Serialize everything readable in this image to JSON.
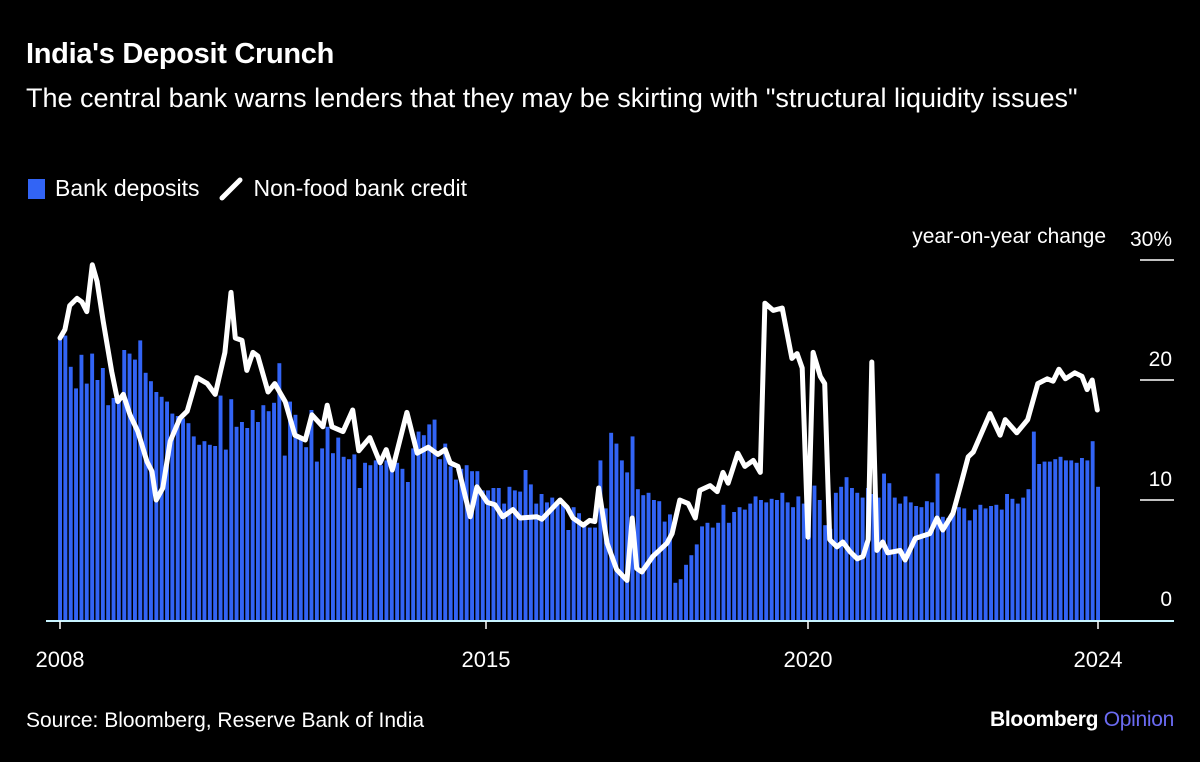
{
  "title": "India's Deposit Crunch",
  "subtitle": "The central bank warns lenders that they may be skirting with \"structural liquidity issues\"",
  "source": "Source: Bloomberg, Reserve Bank of India",
  "logo": {
    "brand": "Bloomberg",
    "section": "Opinion"
  },
  "colors": {
    "background": "#000000",
    "bars": "#3264f5",
    "line": "#ffffff",
    "logo_accent": "#6b6bf2"
  },
  "chart_data": {
    "type": "bar+line",
    "title": "India's Deposit Crunch",
    "ylabel": "year-on-year change",
    "yunit": "%",
    "ylim": [
      0,
      30
    ],
    "yticks": [
      {
        "value": 30,
        "label": "30%"
      },
      {
        "value": 20,
        "label": "20"
      },
      {
        "value": 10,
        "label": "10"
      },
      {
        "value": 0,
        "label": "0"
      }
    ],
    "xlim": [
      2008,
      2024
    ],
    "xticks": [
      "2008",
      "2015",
      "2020",
      "2024"
    ],
    "grid": true,
    "legend_position": "top-left",
    "series": [
      {
        "name": "Bank deposits",
        "kind": "bar",
        "values": [
          23.5,
          23.7,
          21.1,
          19.3,
          22.1,
          19.7,
          22.2,
          20.0,
          21.0,
          17.9,
          18.5,
          18.2,
          22.5,
          22.2,
          21.7,
          23.3,
          20.6,
          19.9,
          19.0,
          18.6,
          18.2,
          17.2,
          17.0,
          16.8,
          16.4,
          15.3,
          14.6,
          14.9,
          14.6,
          14.5,
          18.7,
          14.2,
          18.4,
          16.1,
          16.5,
          16.0,
          17.5,
          16.5,
          17.9,
          17.4,
          18.1,
          21.4,
          13.7,
          18.2,
          17.1,
          15.3,
          14.4,
          17.5,
          13.2,
          14.3,
          16.1,
          13.9,
          15.2,
          13.6,
          13.4,
          13.8,
          11.0,
          13.1,
          12.9,
          13.3,
          12.9,
          13.3,
          12.9,
          13.1,
          12.6,
          11.5,
          14.3,
          15.7,
          15.4,
          16.3,
          16.7,
          13.4,
          14.7,
          12.8,
          11.7,
          12.6,
          12.9,
          12.4,
          12.4,
          10.8,
          10.8,
          11.0,
          11.0,
          9.7,
          11.1,
          10.8,
          10.7,
          12.5,
          11.3,
          9.7,
          10.5,
          9.8,
          10.2,
          9.8,
          9.6,
          7.5,
          9.4,
          8.9,
          8.0,
          7.7,
          7.7,
          13.3,
          9.3,
          15.6,
          14.7,
          13.3,
          12.3,
          15.3,
          10.9,
          10.4,
          10.6,
          10.0,
          9.9,
          8.2,
          8.8,
          3.1,
          3.4,
          4.6,
          5.4,
          6.3,
          7.8,
          8.1,
          7.7,
          8.1,
          9.6,
          8.1,
          9.0,
          9.4,
          9.2,
          9.7,
          10.3,
          10.0,
          9.8,
          10.1,
          10.0,
          10.6,
          9.8,
          9.4,
          10.3,
          9.7,
          11.2,
          11.2,
          10.0,
          7.9,
          7.6,
          10.6,
          11.1,
          11.9,
          11.0,
          10.6,
          10.2,
          11.0,
          10.5,
          10.2,
          12.2,
          11.4,
          10.2,
          9.7,
          10.3,
          9.8,
          9.5,
          9.4,
          9.9,
          9.8,
          12.2,
          8.6,
          8.5,
          8.9,
          9.4,
          9.3,
          8.3,
          9.2,
          9.6,
          9.3,
          9.5,
          9.6,
          9.2,
          10.5,
          10.1,
          9.7,
          10.2,
          10.9,
          15.7,
          13.0,
          13.2,
          13.2,
          13.4,
          13.6,
          13.3,
          13.3,
          13.1,
          13.5,
          13.3,
          14.9,
          11.1
        ]
      },
      {
        "name": "Non-food bank credit",
        "kind": "line",
        "points": [
          [
            2008.0,
            23.5
          ],
          [
            2008.08,
            24.2
          ],
          [
            2008.16,
            26.2
          ],
          [
            2008.28,
            26.8
          ],
          [
            2008.36,
            26.5
          ],
          [
            2008.44,
            25.7
          ],
          [
            2008.53,
            29.6
          ],
          [
            2008.61,
            28.2
          ],
          [
            2008.71,
            24.9
          ],
          [
            2008.85,
            20.7
          ],
          [
            2008.95,
            18.2
          ],
          [
            2009.04,
            18.8
          ],
          [
            2009.15,
            17.1
          ],
          [
            2009.28,
            15.7
          ],
          [
            2009.43,
            13.2
          ],
          [
            2009.51,
            12.4
          ],
          [
            2009.58,
            10.0
          ],
          [
            2009.69,
            11.0
          ],
          [
            2009.81,
            14.9
          ],
          [
            2009.97,
            16.8
          ],
          [
            2010.09,
            17.4
          ],
          [
            2010.25,
            20.2
          ],
          [
            2010.42,
            19.7
          ],
          [
            2010.55,
            18.8
          ],
          [
            2010.71,
            22.3
          ],
          [
            2010.81,
            27.3
          ],
          [
            2010.88,
            23.5
          ],
          [
            2010.99,
            23.3
          ],
          [
            2011.07,
            20.8
          ],
          [
            2011.17,
            22.3
          ],
          [
            2011.25,
            22.0
          ],
          [
            2011.42,
            19.0
          ],
          [
            2011.53,
            19.7
          ],
          [
            2011.7,
            18.2
          ],
          [
            2011.86,
            15.4
          ],
          [
            2012.03,
            15.0
          ],
          [
            2012.14,
            17.1
          ],
          [
            2012.32,
            16.1
          ],
          [
            2012.39,
            17.9
          ],
          [
            2012.47,
            16.1
          ],
          [
            2012.65,
            15.7
          ],
          [
            2012.81,
            17.5
          ],
          [
            2012.91,
            14.1
          ],
          [
            2013.09,
            15.2
          ],
          [
            2013.26,
            13.1
          ],
          [
            2013.36,
            14.2
          ],
          [
            2013.46,
            12.5
          ],
          [
            2013.7,
            17.3
          ],
          [
            2013.87,
            13.9
          ],
          [
            2014.05,
            14.4
          ],
          [
            2014.21,
            13.8
          ],
          [
            2014.33,
            14.2
          ],
          [
            2014.41,
            13.1
          ],
          [
            2014.54,
            12.8
          ],
          [
            2014.74,
            8.6
          ],
          [
            2014.85,
            11.1
          ],
          [
            2015.02,
            9.8
          ],
          [
            2015.14,
            9.6
          ],
          [
            2015.26,
            8.6
          ],
          [
            2015.42,
            9.2
          ],
          [
            2015.53,
            8.5
          ],
          [
            2015.79,
            8.6
          ],
          [
            2015.87,
            8.4
          ],
          [
            2016.15,
            10.0
          ],
          [
            2016.26,
            9.4
          ],
          [
            2016.35,
            8.5
          ],
          [
            2016.51,
            7.9
          ],
          [
            2016.61,
            8.3
          ],
          [
            2016.69,
            8.2
          ],
          [
            2016.75,
            11.0
          ],
          [
            2016.88,
            6.4
          ],
          [
            2017.03,
            4.2
          ],
          [
            2017.19,
            3.3
          ],
          [
            2017.27,
            8.5
          ],
          [
            2017.34,
            4.3
          ],
          [
            2017.42,
            4.0
          ],
          [
            2017.59,
            5.3
          ],
          [
            2017.81,
            6.4
          ],
          [
            2017.89,
            7.2
          ],
          [
            2018.01,
            10.0
          ],
          [
            2018.14,
            9.7
          ],
          [
            2018.25,
            8.5
          ],
          [
            2018.32,
            10.8
          ],
          [
            2018.48,
            11.2
          ],
          [
            2018.59,
            10.7
          ],
          [
            2018.68,
            12.3
          ],
          [
            2018.76,
            11.4
          ],
          [
            2018.91,
            13.9
          ],
          [
            2019.02,
            12.8
          ],
          [
            2019.15,
            13.3
          ],
          [
            2019.26,
            12.3
          ],
          [
            2019.33,
            26.4
          ],
          [
            2019.46,
            25.8
          ],
          [
            2019.6,
            26.0
          ],
          [
            2019.75,
            21.8
          ],
          [
            2019.83,
            22.2
          ],
          [
            2019.91,
            21.0
          ],
          [
            2020.0,
            6.9
          ],
          [
            2020.07,
            22.3
          ],
          [
            2020.17,
            20.3
          ],
          [
            2020.23,
            19.7
          ],
          [
            2020.3,
            6.7
          ],
          [
            2020.4,
            6.1
          ],
          [
            2020.48,
            6.5
          ],
          [
            2020.58,
            5.7
          ],
          [
            2020.68,
            5.1
          ],
          [
            2020.76,
            5.3
          ],
          [
            2020.83,
            6.7
          ],
          [
            2020.88,
            21.5
          ],
          [
            2020.95,
            5.8
          ],
          [
            2021.03,
            6.5
          ],
          [
            2021.1,
            5.6
          ],
          [
            2021.27,
            5.8
          ],
          [
            2021.34,
            5.0
          ],
          [
            2021.48,
            6.8
          ],
          [
            2021.68,
            7.2
          ],
          [
            2021.78,
            8.5
          ],
          [
            2021.86,
            7.5
          ],
          [
            2022.0,
            8.9
          ],
          [
            2022.1,
            11.1
          ],
          [
            2022.21,
            13.6
          ],
          [
            2022.28,
            14.0
          ],
          [
            2022.51,
            17.2
          ],
          [
            2022.65,
            15.4
          ],
          [
            2022.72,
            16.7
          ],
          [
            2022.88,
            15.6
          ],
          [
            2023.03,
            16.7
          ],
          [
            2023.17,
            19.7
          ],
          [
            2023.3,
            20.1
          ],
          [
            2023.38,
            19.9
          ],
          [
            2023.46,
            20.9
          ],
          [
            2023.55,
            20.1
          ],
          [
            2023.68,
            20.6
          ],
          [
            2023.78,
            20.3
          ],
          [
            2023.85,
            19.2
          ],
          [
            2023.92,
            20.0
          ],
          [
            2023.99,
            17.5
          ]
        ]
      }
    ]
  }
}
